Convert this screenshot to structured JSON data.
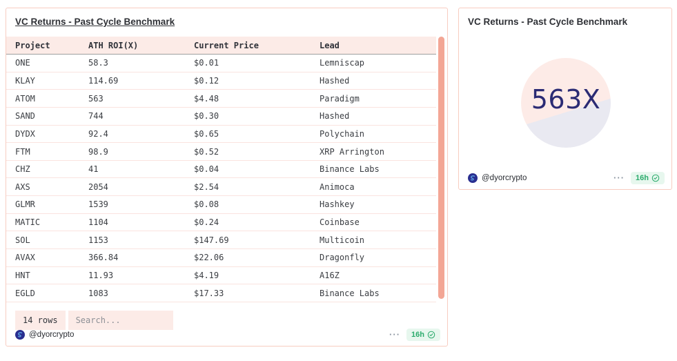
{
  "left_card": {
    "title": "VC Returns - Past Cycle Benchmark",
    "table": {
      "columns": [
        "Project",
        "ATH ROI(X)",
        "Current Price",
        "Lead"
      ],
      "rows": [
        [
          "ONE",
          "58.3",
          "$0.01",
          "Lemniscap"
        ],
        [
          "KLAY",
          "114.69",
          "$0.12",
          "Hashed"
        ],
        [
          "ATOM",
          "563",
          "$4.48",
          "Paradigm"
        ],
        [
          "SAND",
          "744",
          "$0.30",
          "Hashed"
        ],
        [
          "DYDX",
          "92.4",
          "$0.65",
          "Polychain"
        ],
        [
          "FTM",
          "98.9",
          "$0.52",
          "XRP Arrington"
        ],
        [
          "CHZ",
          "41",
          "$0.04",
          "Binance Labs"
        ],
        [
          "AXS",
          "2054",
          "$2.54",
          "Animoca"
        ],
        [
          "GLMR",
          "1539",
          "$0.08",
          "Hashkey"
        ],
        [
          "MATIC",
          "1104",
          "$0.24",
          "Coinbase"
        ],
        [
          "SOL",
          "1153",
          "$147.69",
          "Multicoin"
        ],
        [
          "AVAX",
          "366.84",
          "$22.06",
          "Dragonfly"
        ],
        [
          "HNT",
          "11.93",
          "$4.19",
          "A16Z"
        ],
        [
          "EGLD",
          "1083",
          "$17.33",
          "Binance Labs"
        ]
      ]
    },
    "row_count_label": "14 rows",
    "search_placeholder": "Search...",
    "footer": {
      "handle": "@dyorcrypto",
      "more_label": "···",
      "time": "16h"
    }
  },
  "right_card": {
    "title": "VC Returns - Past Cycle Benchmark",
    "highlight_value": "563X",
    "footer": {
      "handle": "@dyorcrypto",
      "more_label": "···",
      "time": "16h"
    }
  },
  "colors": {
    "card_border": "#f8ccc0",
    "header_bg": "#fcebe7",
    "row_divider": "#fae3df",
    "scrollbar_thumb": "#f3a695",
    "time_badge_bg": "#e7f7ee",
    "time_badge_text": "#2bab6c",
    "highlight_text": "#2b2b74",
    "circle_pink": "#fdebe7",
    "circle_lavender": "#e9e9f1",
    "avatar_navy": "#2a2f90"
  }
}
